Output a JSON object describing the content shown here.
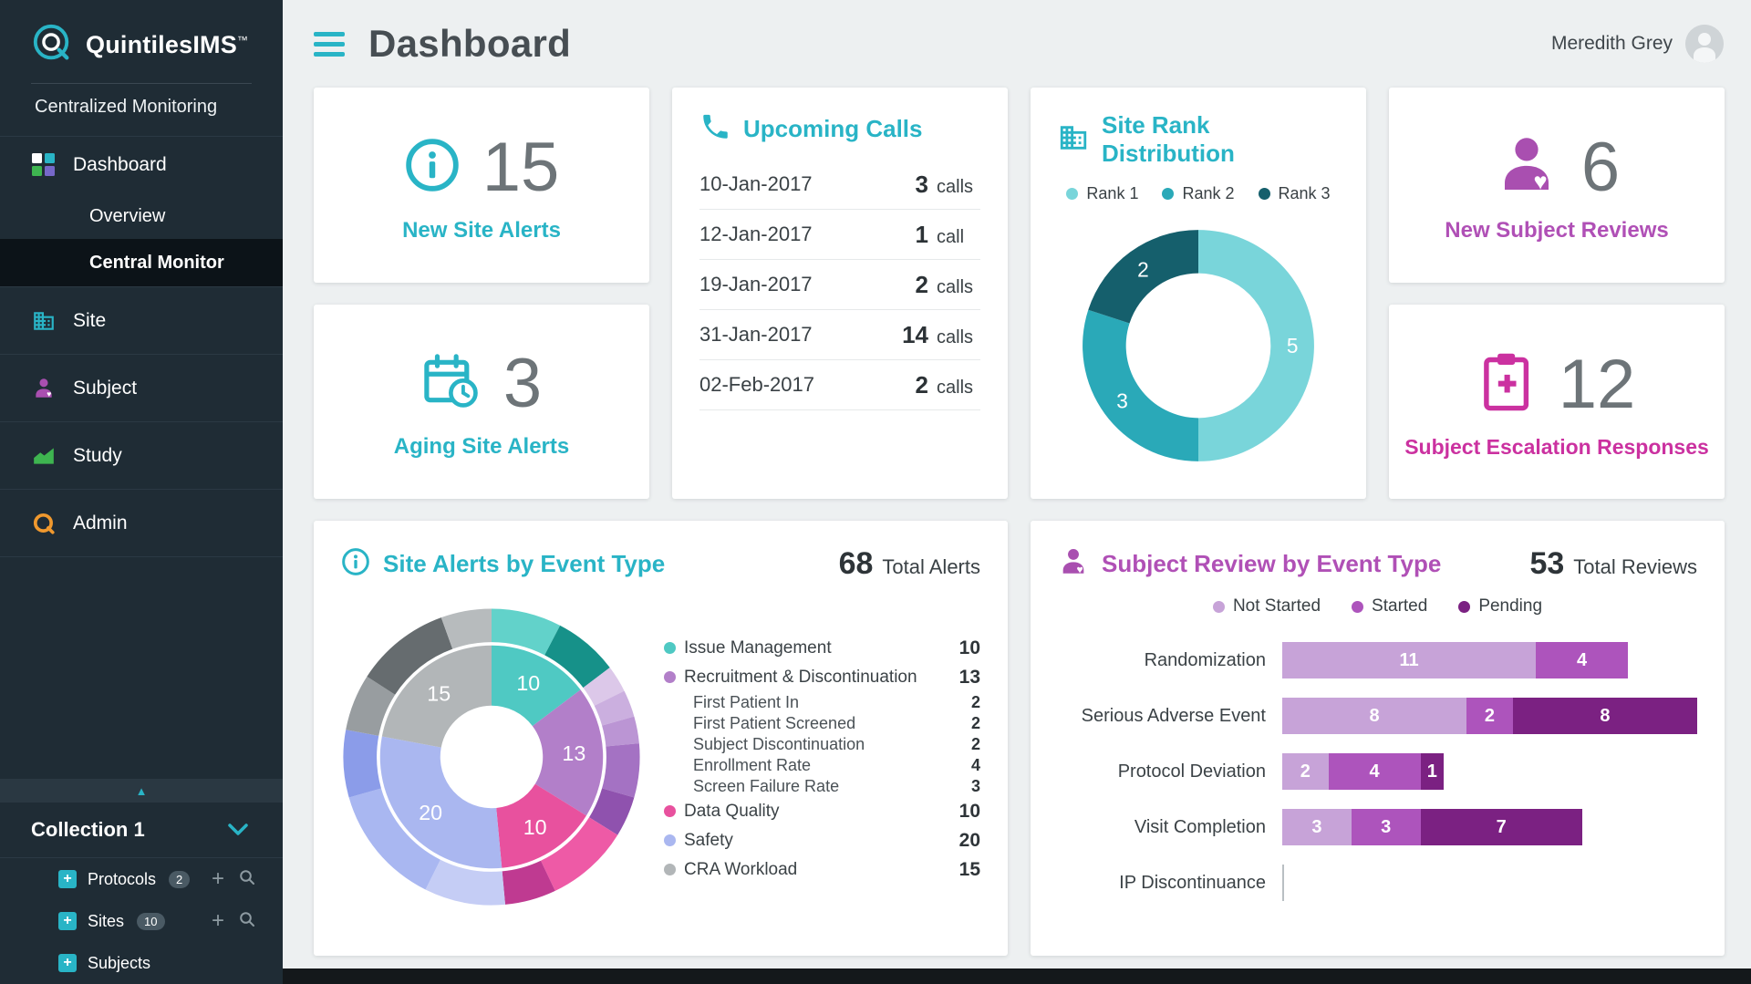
{
  "brand": {
    "name": "QuintilesIMS",
    "tm": "™",
    "subtitle": "Centralized Monitoring"
  },
  "header": {
    "title": "Dashboard",
    "user_name": "Meredith Grey"
  },
  "sidebar": {
    "nav": [
      {
        "label": "Dashboard"
      },
      {
        "label": "Overview"
      },
      {
        "label": "Central Monitor"
      },
      {
        "label": "Site"
      },
      {
        "label": "Subject"
      },
      {
        "label": "Study"
      },
      {
        "label": "Admin"
      }
    ],
    "collection": {
      "label": "Collection 1"
    },
    "tree": [
      {
        "label": "Protocols",
        "badge": "2"
      },
      {
        "label": "Sites",
        "badge": "10"
      },
      {
        "label": "Subjects"
      }
    ]
  },
  "cards": {
    "new_site_alerts": {
      "value": "15",
      "label": "New Site Alerts"
    },
    "aging_site_alerts": {
      "value": "3",
      "label": "Aging Site Alerts"
    },
    "upcoming_calls": {
      "title": "Upcoming Calls",
      "rows": [
        {
          "date": "10-Jan-2017",
          "count": "3",
          "unit": "calls"
        },
        {
          "date": "12-Jan-2017",
          "count": "1",
          "unit": "call"
        },
        {
          "date": "19-Jan-2017",
          "count": "2",
          "unit": "calls"
        },
        {
          "date": "31-Jan-2017",
          "count": "14",
          "unit": "calls"
        },
        {
          "date": "02-Feb-2017",
          "count": "2",
          "unit": "calls"
        }
      ]
    },
    "site_rank": {
      "title": "Site Rank Distribution"
    },
    "new_subject_reviews": {
      "value": "6",
      "label": "New Subject Reviews"
    },
    "subject_escalation": {
      "value": "12",
      "label": "Subject Escalation Responses"
    },
    "site_alerts_by_event": {
      "title": "Site Alerts by Event Type",
      "total": "68",
      "total_label": "Total Alerts"
    },
    "subject_review_by_event": {
      "title": "Subject Review by Event Type",
      "total": "53",
      "total_label": "Total Reviews"
    }
  },
  "chart_data": [
    {
      "id": "site_rank_donut",
      "type": "pie",
      "title": "Site Rank Distribution",
      "categories": [
        "Rank 1",
        "Rank 2",
        "Rank 3"
      ],
      "values": [
        5,
        3,
        2
      ],
      "colors": [
        "#79d5da",
        "#2aa9b8",
        "#155f6c"
      ],
      "legend_position": "top"
    },
    {
      "id": "site_alerts_donut",
      "type": "pie",
      "title": "Site Alerts by Event Type",
      "total": 68,
      "categories": [
        {
          "name": "Issue Management",
          "value": 10,
          "color": "#4fc9c3",
          "subs": [
            {
              "f": 0.52,
              "color": "#62d2ca"
            },
            {
              "f": 0.48,
              "color": "#169189"
            }
          ]
        },
        {
          "name": "Recruitment & Discontinuation",
          "value": 13,
          "color": "#b27fc9",
          "subs": [
            {
              "f": 0.154,
              "color": "#dcc8e9"
            },
            {
              "f": 0.154,
              "color": "#cbafdf"
            },
            {
              "f": 0.154,
              "color": "#bb95d4"
            },
            {
              "f": 0.307,
              "color": "#a472c3"
            },
            {
              "f": 0.231,
              "color": "#8f52ae"
            }
          ],
          "breakdown": [
            {
              "label": "First Patient In",
              "value": 2
            },
            {
              "label": "First Patient Screened",
              "value": 2
            },
            {
              "label": "Subject Discontinuation",
              "value": 2
            },
            {
              "label": "Enrollment Rate",
              "value": 4
            },
            {
              "label": "Screen Failure Rate",
              "value": 3
            }
          ]
        },
        {
          "name": "Data Quality",
          "value": 10,
          "color": "#e8519e",
          "subs": [
            {
              "f": 0.62,
              "color": "#ee5aa6"
            },
            {
              "f": 0.38,
              "color": "#bf3a91"
            }
          ]
        },
        {
          "name": "Safety",
          "value": 20,
          "color": "#aab7f0",
          "subs": [
            {
              "f": 0.3,
              "color": "#c5cdf5"
            },
            {
              "f": 0.45,
              "color": "#a9b7f1"
            },
            {
              "f": 0.25,
              "color": "#8b9ce9"
            }
          ]
        },
        {
          "name": "CRA Workload",
          "value": 15,
          "color": "#b2b6b8",
          "subs": [
            {
              "f": 0.28,
              "color": "#989da0"
            },
            {
              "f": 0.47,
              "color": "#666c6f"
            },
            {
              "f": 0.25,
              "color": "#b7bbbd"
            }
          ]
        }
      ]
    },
    {
      "id": "subject_review_bars",
      "type": "bar",
      "orientation": "horizontal-stacked",
      "categories": [
        "Randomization",
        "Serious Adverse Event",
        "Protocol Deviation",
        "Visit Completion",
        "IP Discontinuance"
      ],
      "series": [
        {
          "name": "Not Started",
          "color": "#c7a3d8",
          "values": [
            11,
            8,
            2,
            3,
            0
          ]
        },
        {
          "name": "Started",
          "color": "#ad54bc",
          "values": [
            4,
            2,
            4,
            3,
            0
          ]
        },
        {
          "name": "Pending",
          "color": "#7b2182",
          "values": [
            0,
            8,
            1,
            7,
            0
          ]
        }
      ],
      "xmax": 18,
      "total": 53
    }
  ]
}
